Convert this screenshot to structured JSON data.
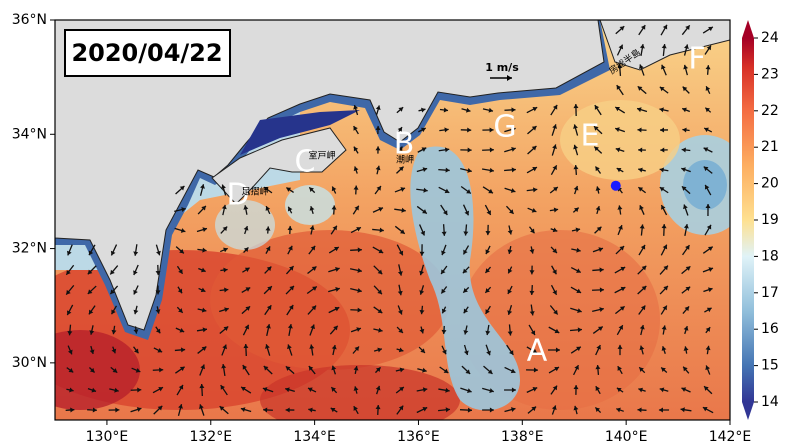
{
  "map": {
    "title": "2020/04/22",
    "scale_label": "1 m/s",
    "xlim": [
      129,
      142
    ],
    "ylim": [
      29,
      36
    ],
    "xticks": [
      {
        "value": 130,
        "label": "130°E"
      },
      {
        "value": 132,
        "label": "132°E"
      },
      {
        "value": 134,
        "label": "134°E"
      },
      {
        "value": 136,
        "label": "136°E"
      },
      {
        "value": 138,
        "label": "138°E"
      },
      {
        "value": 140,
        "label": "140°E"
      },
      {
        "value": 142,
        "label": "142°E"
      }
    ],
    "yticks": [
      {
        "value": 30,
        "label": "30°N"
      },
      {
        "value": 32,
        "label": "32°N"
      },
      {
        "value": 34,
        "label": "34°N"
      },
      {
        "value": 36,
        "label": "36°N"
      }
    ],
    "colorbar": {
      "lim": [
        14,
        24
      ],
      "ticks": [
        14,
        15,
        16,
        17,
        18,
        19,
        20,
        21,
        22,
        23,
        24
      ]
    },
    "labels": [
      "A",
      "B",
      "C",
      "D",
      "E",
      "F",
      "G"
    ],
    "places": [
      "室戸岬",
      "足摺岬",
      "潮岬",
      "房総半島"
    ],
    "marker": {
      "lon": 139.8,
      "lat": 33.1
    }
  }
}
